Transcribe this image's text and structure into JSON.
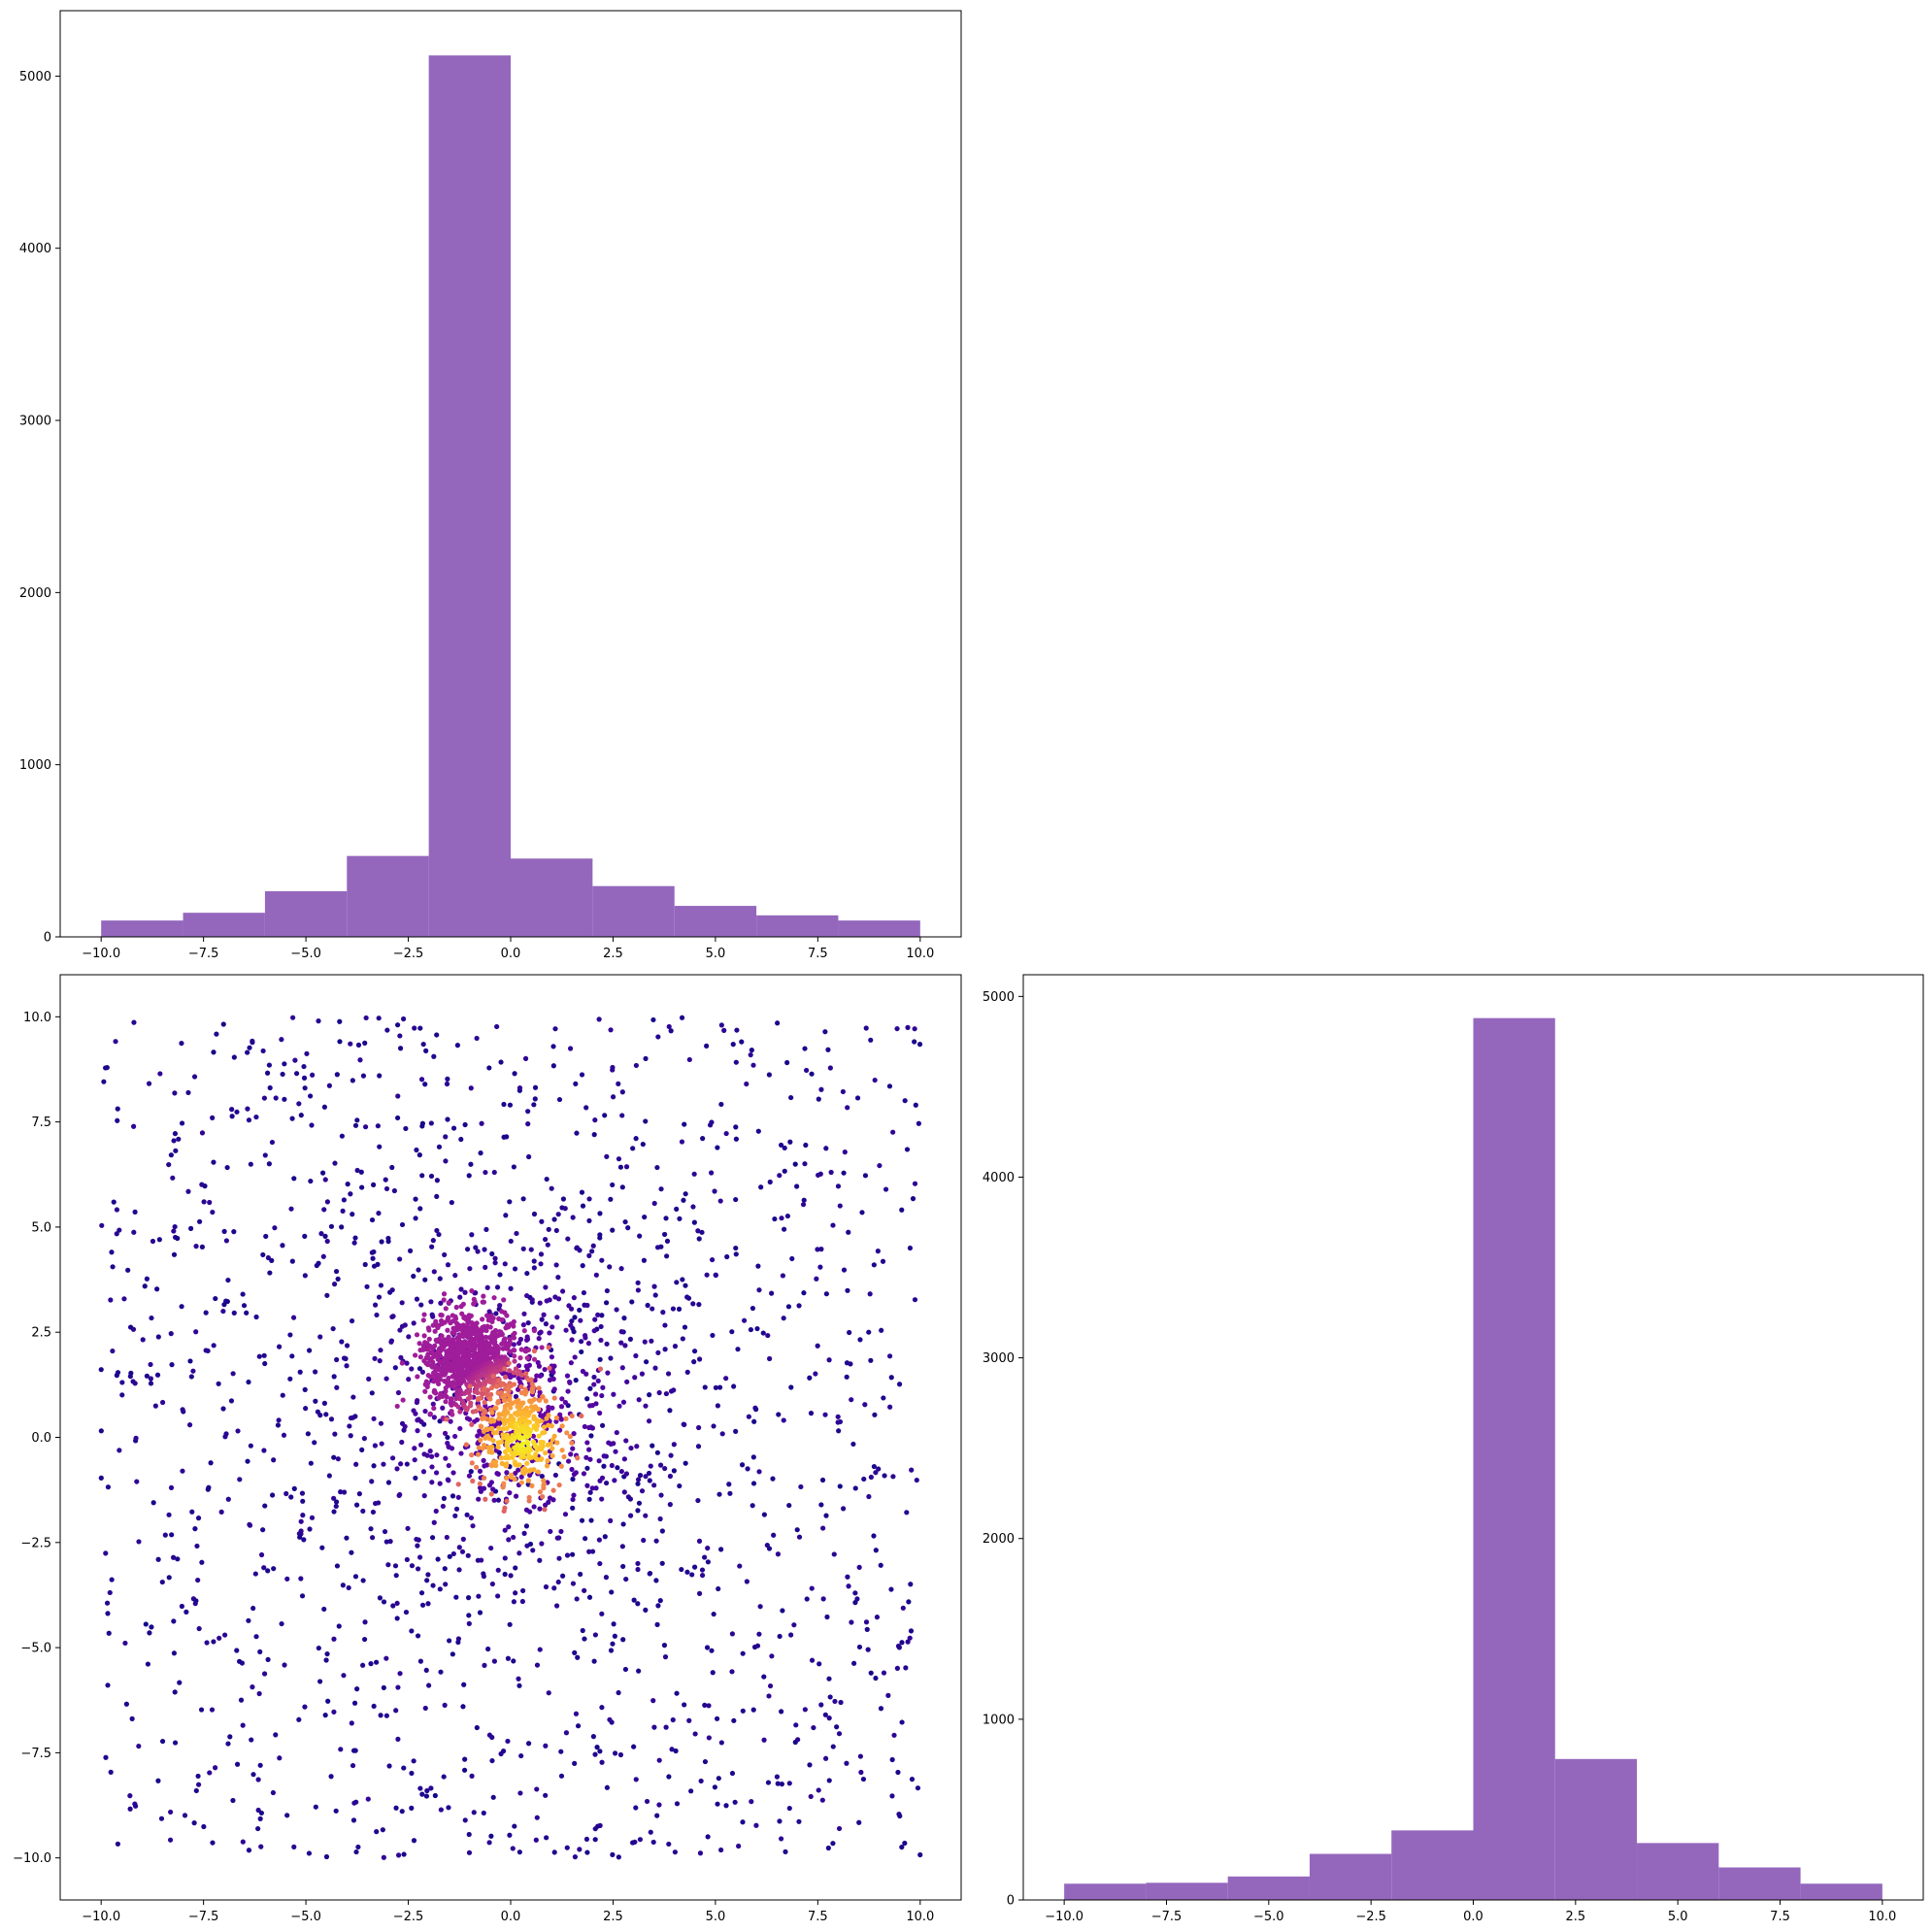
{
  "chart_data": [
    {
      "type": "bar",
      "subtype": "histogram",
      "panel": "top-left",
      "title": "",
      "xlabel": "",
      "ylabel": "",
      "color": "#9467bd",
      "bin_edges": [
        -10,
        -8,
        -6,
        -4,
        -2,
        0,
        2,
        4,
        6,
        8,
        10
      ],
      "values": [
        95,
        140,
        265,
        470,
        5120,
        455,
        295,
        180,
        125,
        95
      ],
      "xlim": [
        -11.0,
        11.0
      ],
      "ylim": [
        0,
        5380
      ],
      "xticks": [
        -10.0,
        -7.5,
        -5.0,
        -2.5,
        0.0,
        2.5,
        5.0,
        7.5,
        10.0
      ],
      "xtick_labels": [
        "−10.0",
        "−7.5",
        "−5.0",
        "−2.5",
        "0.0",
        "2.5",
        "5.0",
        "7.5",
        "10.0"
      ],
      "yticks": [
        0,
        1000,
        2000,
        3000,
        4000,
        5000
      ],
      "ytick_labels": [
        "0",
        "1000",
        "2000",
        "3000",
        "4000",
        "5000"
      ]
    },
    {
      "type": "scatter",
      "panel": "bottom-left",
      "title": "",
      "xlabel": "",
      "ylabel": "",
      "colormap": "plasma",
      "color_encoding": "point density",
      "description_of_points": "~2400 points uniformly spread over [-10,10]x[-10,10] plus a dense cluster near (-1, 1.5); densest points yellow near (0.3, 0), sparse points dark purple",
      "xlim": [
        -11.0,
        11.0
      ],
      "ylim": [
        -11.0,
        11.0
      ],
      "xticks": [
        -10.0,
        -7.5,
        -5.0,
        -2.5,
        0.0,
        2.5,
        5.0,
        7.5,
        10.0
      ],
      "xtick_labels": [
        "−10.0",
        "−7.5",
        "−5.0",
        "−2.5",
        "0.0",
        "2.5",
        "5.0",
        "7.5",
        "10.0"
      ],
      "yticks": [
        -10.0,
        -7.5,
        -5.0,
        -2.5,
        0.0,
        2.5,
        5.0,
        7.5,
        10.0
      ],
      "ytick_labels": [
        "−10.0",
        "−7.5",
        "−5.0",
        "−2.5",
        "0.0",
        "2.5",
        "5.0",
        "7.5",
        "10.0"
      ]
    },
    {
      "type": "bar",
      "subtype": "histogram",
      "panel": "bottom-right",
      "title": "",
      "xlabel": "",
      "ylabel": "",
      "color": "#9467bd",
      "bin_edges": [
        -10,
        -8,
        -6,
        -4,
        -2,
        0,
        2,
        4,
        6,
        8,
        10
      ],
      "values": [
        90,
        95,
        130,
        255,
        385,
        4880,
        780,
        315,
        180,
        90
      ],
      "xlim": [
        -11.0,
        11.0
      ],
      "ylim": [
        0,
        5120
      ],
      "xticks": [
        -10.0,
        -7.5,
        -5.0,
        -2.5,
        0.0,
        2.5,
        5.0,
        7.5,
        10.0
      ],
      "xtick_labels": [
        "−10.0",
        "−7.5",
        "−5.0",
        "−2.5",
        "0.0",
        "2.5",
        "5.0",
        "7.5",
        "10.0"
      ],
      "yticks": [
        0,
        1000,
        2000,
        3000,
        4000,
        5000
      ],
      "ytick_labels": [
        "0",
        "1000",
        "2000",
        "3000",
        "4000",
        "5000"
      ]
    }
  ]
}
